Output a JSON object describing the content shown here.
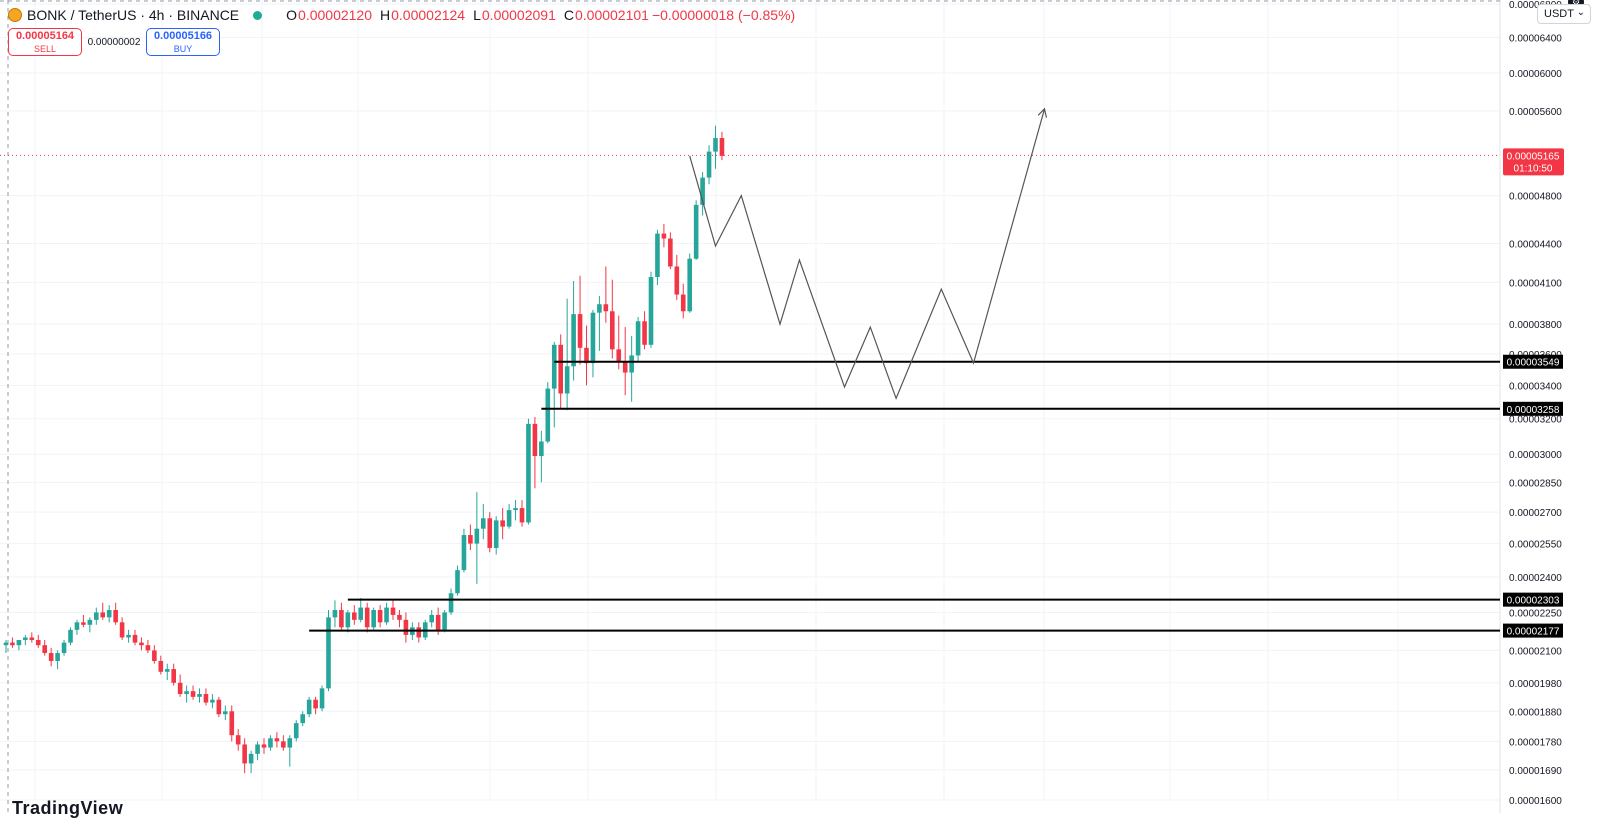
{
  "header": {
    "symbol": "BONK / TetherUS · 4h · BINANCE",
    "open_label": "O",
    "open": "0.00002120",
    "high_label": "H",
    "high": "0.00002124",
    "low_label": "L",
    "low": "0.00002091",
    "close_label": "C",
    "close": "0.00002101",
    "change": "−0.00000018 (−0.85%)"
  },
  "trade": {
    "sell_price": "0.00005164",
    "sell_label": "SELL",
    "spread": "0.00000002",
    "buy_price": "0.00005166",
    "buy_label": "BUY"
  },
  "currency": "USDT",
  "watermark": "TradingView",
  "colors": {
    "up": "#26a69a",
    "down": "#f23645",
    "line": "#000000",
    "price_line": "#f23645",
    "path": "#555555"
  },
  "chart_data": {
    "type": "candlestick",
    "scale": "log",
    "ylim": [
      1.6e-05,
      6.85e-05
    ],
    "y_ticks": [
      "0.00006800",
      "0.00006400",
      "0.00006000",
      "0.00005600",
      "0.00004800",
      "0.00004400",
      "0.00004100",
      "0.00003800",
      "0.00003600",
      "0.00003400",
      "0.00003200",
      "0.00003000",
      "0.00002850",
      "0.00002700",
      "0.00002550",
      "0.00002400",
      "0.00002250",
      "0.00002100",
      "0.00001980",
      "0.00001880",
      "0.00001780",
      "0.00001690",
      "0.00001600"
    ],
    "current_price": {
      "value": "0.00005165",
      "countdown": "01:10:50"
    },
    "horizontal_levels": [
      {
        "value": "0.00003549",
        "from_candle": 85
      },
      {
        "value": "0.00003258",
        "from_candle": 83
      },
      {
        "value": "0.00002303",
        "from_candle": 53
      },
      {
        "value": "0.00002177",
        "from_candle": 47
      }
    ],
    "candles": [
      [
        2.12e-05,
        2.14e-05,
        2.09e-05,
        2.13e-05
      ],
      [
        2.13e-05,
        2.15e-05,
        2.11e-05,
        2.12e-05
      ],
      [
        2.12e-05,
        2.14e-05,
        2.1e-05,
        2.14e-05
      ],
      [
        2.14e-05,
        2.16e-05,
        2.12e-05,
        2.15e-05
      ],
      [
        2.15e-05,
        2.17e-05,
        2.13e-05,
        2.14e-05
      ],
      [
        2.14e-05,
        2.16e-05,
        2.11e-05,
        2.12e-05
      ],
      [
        2.12e-05,
        2.14e-05,
        2.08e-05,
        2.09e-05
      ],
      [
        2.09e-05,
        2.11e-05,
        2.04e-05,
        2.06e-05
      ],
      [
        2.06e-05,
        2.1e-05,
        2.03e-05,
        2.09e-05
      ],
      [
        2.09e-05,
        2.14e-05,
        2.08e-05,
        2.13e-05
      ],
      [
        2.13e-05,
        2.19e-05,
        2.12e-05,
        2.18e-05
      ],
      [
        2.18e-05,
        2.22e-05,
        2.16e-05,
        2.21e-05
      ],
      [
        2.21e-05,
        2.24e-05,
        2.19e-05,
        2.2e-05
      ],
      [
        2.2e-05,
        2.23e-05,
        2.17e-05,
        2.22e-05
      ],
      [
        2.22e-05,
        2.27e-05,
        2.2e-05,
        2.25e-05
      ],
      [
        2.25e-05,
        2.29e-05,
        2.22e-05,
        2.23e-05
      ],
      [
        2.23e-05,
        2.28e-05,
        2.21e-05,
        2.26e-05
      ],
      [
        2.26e-05,
        2.29e-05,
        2.2e-05,
        2.21e-05
      ],
      [
        2.21e-05,
        2.23e-05,
        2.14e-05,
        2.15e-05
      ],
      [
        2.15e-05,
        2.18e-05,
        2.13e-05,
        2.16e-05
      ],
      [
        2.16e-05,
        2.18e-05,
        2.12e-05,
        2.13e-05
      ],
      [
        2.13e-05,
        2.15e-05,
        2.1e-05,
        2.12e-05
      ],
      [
        2.12e-05,
        2.14e-05,
        2.09e-05,
        2.1e-05
      ],
      [
        2.1e-05,
        2.12e-05,
        2.05e-05,
        2.06e-05
      ],
      [
        2.06e-05,
        2.08e-05,
        2.01e-05,
        2.02e-05
      ],
      [
        2.02e-05,
        2.05e-05,
        1.99e-05,
        2.03e-05
      ],
      [
        2.03e-05,
        2.05e-05,
        1.97e-05,
        1.98e-05
      ],
      [
        1.98e-05,
        2.01e-05,
        1.93e-05,
        1.94e-05
      ],
      [
        1.94e-05,
        1.97e-05,
        1.91e-05,
        1.95e-05
      ],
      [
        1.95e-05,
        1.97e-05,
        1.92e-05,
        1.93e-05
      ],
      [
        1.93e-05,
        1.96e-05,
        1.91e-05,
        1.94e-05
      ],
      [
        1.94e-05,
        1.96e-05,
        1.9e-05,
        1.91e-05
      ],
      [
        1.91e-05,
        1.94e-05,
        1.89e-05,
        1.92e-05
      ],
      [
        1.92e-05,
        1.93e-05,
        1.86e-05,
        1.87e-05
      ],
      [
        1.87e-05,
        1.9e-05,
        1.85e-05,
        1.88e-05
      ],
      [
        1.88e-05,
        1.9e-05,
        1.78e-05,
        1.8e-05
      ],
      [
        1.8e-05,
        1.82e-05,
        1.75e-05,
        1.77e-05
      ],
      [
        1.77e-05,
        1.79e-05,
        1.68e-05,
        1.71e-05
      ],
      [
        1.71e-05,
        1.75e-05,
        1.68e-05,
        1.74e-05
      ],
      [
        1.74e-05,
        1.78e-05,
        1.72e-05,
        1.77e-05
      ],
      [
        1.77e-05,
        1.79e-05,
        1.74e-05,
        1.76e-05
      ],
      [
        1.76e-05,
        1.8e-05,
        1.75e-05,
        1.79e-05
      ],
      [
        1.79e-05,
        1.81e-05,
        1.76e-05,
        1.78e-05
      ],
      [
        1.78e-05,
        1.8e-05,
        1.75e-05,
        1.76e-05
      ],
      [
        1.76e-05,
        1.8e-05,
        1.7e-05,
        1.79e-05
      ],
      [
        1.79e-05,
        1.85e-05,
        1.78e-05,
        1.84e-05
      ],
      [
        1.84e-05,
        1.88e-05,
        1.83e-05,
        1.87e-05
      ],
      [
        1.87e-05,
        1.93e-05,
        1.86e-05,
        1.92e-05
      ],
      [
        1.92e-05,
        1.93e-05,
        1.87e-05,
        1.89e-05
      ],
      [
        1.89e-05,
        1.97e-05,
        1.88e-05,
        1.96e-05
      ],
      [
        1.96e-05,
        2.26e-05,
        1.95e-05,
        2.23e-05
      ],
      [
        2.23e-05,
        2.3e-05,
        2.19e-05,
        2.26e-05
      ],
      [
        2.26e-05,
        2.29e-05,
        2.18e-05,
        2.19e-05
      ],
      [
        2.19e-05,
        2.26e-05,
        2.17e-05,
        2.25e-05
      ],
      [
        2.25e-05,
        2.28e-05,
        2.2e-05,
        2.22e-05
      ],
      [
        2.22e-05,
        2.31e-05,
        2.21e-05,
        2.27e-05
      ],
      [
        2.27e-05,
        2.29e-05,
        2.17e-05,
        2.19e-05
      ],
      [
        2.19e-05,
        2.27e-05,
        2.18e-05,
        2.26e-05
      ],
      [
        2.26e-05,
        2.28e-05,
        2.19e-05,
        2.21e-05
      ],
      [
        2.21e-05,
        2.29e-05,
        2.2e-05,
        2.27e-05
      ],
      [
        2.27e-05,
        2.3e-05,
        2.22e-05,
        2.24e-05
      ],
      [
        2.24e-05,
        2.26e-05,
        2.19e-05,
        2.22e-05
      ],
      [
        2.22e-05,
        2.25e-05,
        2.13e-05,
        2.16e-05
      ],
      [
        2.16e-05,
        2.21e-05,
        2.14e-05,
        2.19e-05
      ],
      [
        2.19e-05,
        2.21e-05,
        2.13e-05,
        2.15e-05
      ],
      [
        2.15e-05,
        2.22e-05,
        2.14e-05,
        2.21e-05
      ],
      [
        2.21e-05,
        2.26e-05,
        2.19e-05,
        2.24e-05
      ],
      [
        2.24e-05,
        2.27e-05,
        2.16e-05,
        2.18e-05
      ],
      [
        2.18e-05,
        2.26e-05,
        2.17e-05,
        2.25e-05
      ],
      [
        2.25e-05,
        2.35e-05,
        2.24e-05,
        2.33e-05
      ],
      [
        2.33e-05,
        2.45e-05,
        2.32e-05,
        2.43e-05
      ],
      [
        2.43e-05,
        2.62e-05,
        2.42e-05,
        2.59e-05
      ],
      [
        2.59e-05,
        2.64e-05,
        2.52e-05,
        2.55e-05
      ],
      [
        2.55e-05,
        2.8e-05,
        2.37e-05,
        2.62e-05
      ],
      [
        2.62e-05,
        2.74e-05,
        2.57e-05,
        2.67e-05
      ],
      [
        2.67e-05,
        2.7e-05,
        2.51e-05,
        2.53e-05
      ],
      [
        2.53e-05,
        2.68e-05,
        2.5e-05,
        2.66e-05
      ],
      [
        2.66e-05,
        2.72e-05,
        2.57e-05,
        2.63e-05
      ],
      [
        2.63e-05,
        2.74e-05,
        2.62e-05,
        2.71e-05
      ],
      [
        2.71e-05,
        2.76e-05,
        2.66e-05,
        2.72e-05
      ],
      [
        2.72e-05,
        2.76e-05,
        2.63e-05,
        2.65e-05
      ],
      [
        2.65e-05,
        3.2e-05,
        2.64e-05,
        3.17e-05
      ],
      [
        3.17e-05,
        3.21e-05,
        2.82e-05,
        2.99e-05
      ],
      [
        2.99e-05,
        3.13e-05,
        2.85e-05,
        3.07e-05
      ],
      [
        3.07e-05,
        3.42e-05,
        3.06e-05,
        3.38e-05
      ],
      [
        3.38e-05,
        3.68e-05,
        3.15e-05,
        3.66e-05
      ],
      [
        3.66e-05,
        3.73e-05,
        3.26e-05,
        3.35e-05
      ],
      [
        3.35e-05,
        3.98e-05,
        3.25e-05,
        3.52e-05
      ],
      [
        3.52e-05,
        4.11e-05,
        3.43e-05,
        3.87e-05
      ],
      [
        3.87e-05,
        4.15e-05,
        3.53e-05,
        3.64e-05
      ],
      [
        3.64e-05,
        3.79e-05,
        3.4e-05,
        3.54e-05
      ],
      [
        3.54e-05,
        3.9e-05,
        3.45e-05,
        3.88e-05
      ],
      [
        3.88e-05,
        4e-05,
        3.62e-05,
        3.94e-05
      ],
      [
        3.94e-05,
        4.22e-05,
        3.81e-05,
        3.89e-05
      ],
      [
        3.89e-05,
        4.12e-05,
        3.57e-05,
        3.63e-05
      ],
      [
        3.63e-05,
        3.86e-05,
        3.5e-05,
        3.55e-05
      ],
      [
        3.55e-05,
        3.78e-05,
        3.34e-05,
        3.48e-05
      ],
      [
        3.48e-05,
        3.72e-05,
        3.3e-05,
        3.59e-05
      ],
      [
        3.59e-05,
        3.85e-05,
        3.55e-05,
        3.82e-05
      ],
      [
        3.82e-05,
        3.89e-05,
        3.63e-05,
        3.66e-05
      ],
      [
        3.66e-05,
        4.18e-05,
        3.64e-05,
        4.14e-05
      ],
      [
        4.14e-05,
        4.51e-05,
        4.08e-05,
        4.48e-05
      ],
      [
        4.48e-05,
        4.56e-05,
        4.37e-05,
        4.44e-05
      ],
      [
        4.44e-05,
        4.49e-05,
        4.2e-05,
        4.22e-05
      ],
      [
        4.22e-05,
        4.31e-05,
        3.97e-05,
        4.01e-05
      ],
      [
        4.01e-05,
        4.09e-05,
        3.84e-05,
        3.89e-05
      ],
      [
        3.89e-05,
        4.32e-05,
        3.88e-05,
        4.28e-05
      ],
      [
        4.28e-05,
        4.76e-05,
        4.27e-05,
        4.72e-05
      ],
      [
        4.72e-05,
        5.01e-05,
        4.63e-05,
        4.96e-05
      ],
      [
        4.96e-05,
        5.26e-05,
        4.9e-05,
        5.2e-05
      ],
      [
        5.2e-05,
        5.45e-05,
        5.04e-05,
        5.33e-05
      ],
      [
        5.33e-05,
        5.39e-05,
        5.12e-05,
        5.16e-05
      ]
    ],
    "projection_path": [
      [
        106,
        5.16e-05
      ],
      [
        110,
        4.38e-05
      ],
      [
        114,
        4.8e-05
      ],
      [
        120,
        3.8e-05
      ],
      [
        123,
        4.27e-05
      ],
      [
        130,
        3.39e-05
      ],
      [
        134,
        3.78e-05
      ],
      [
        138,
        3.32e-05
      ],
      [
        145,
        4.05e-05
      ],
      [
        150,
        3.54e-05
      ],
      [
        161,
        5.62e-05
      ]
    ]
  }
}
